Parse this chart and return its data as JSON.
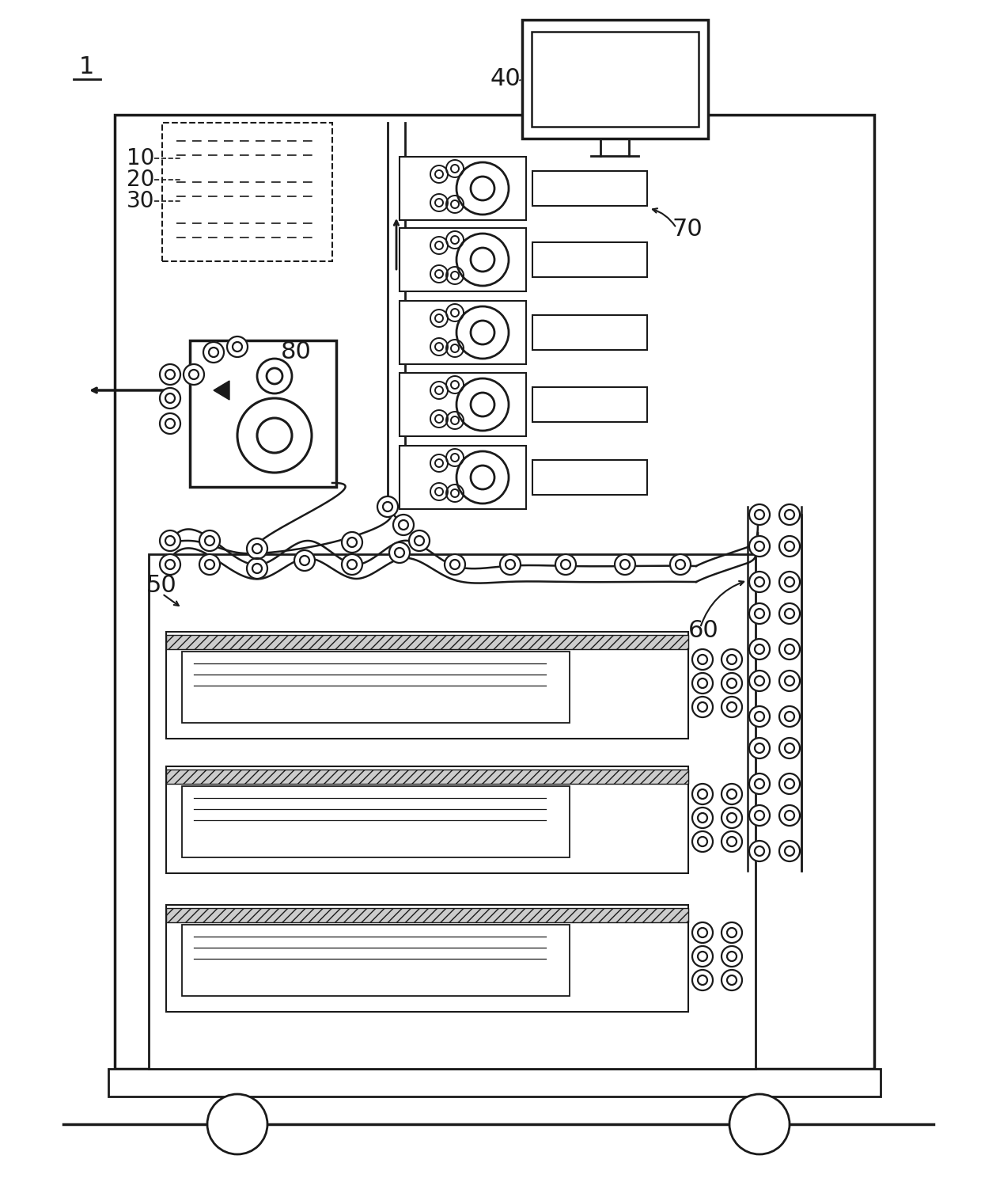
{
  "bg_color": "#ffffff",
  "lc": "#1a1a1a",
  "lw": 2.2,
  "figsize": [
    12.4,
    14.93
  ],
  "dpi": 100
}
